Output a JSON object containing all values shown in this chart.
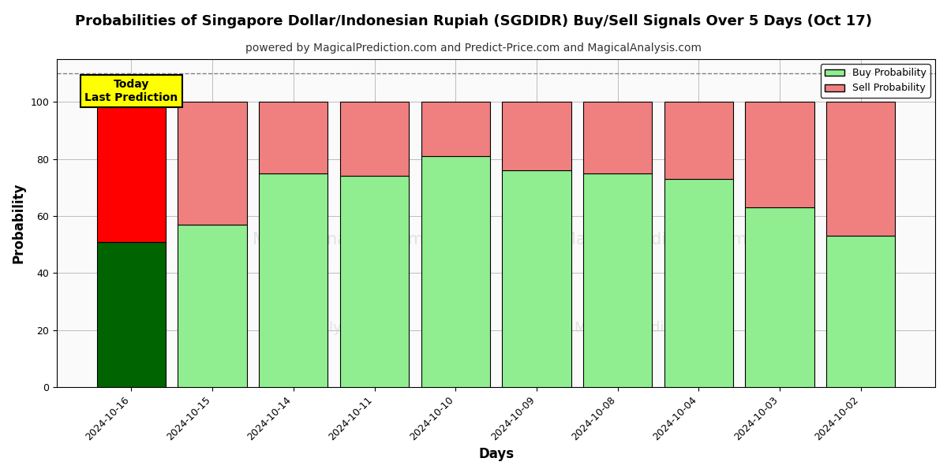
{
  "title": "Probabilities of Singapore Dollar/Indonesian Rupiah (SGDIDR) Buy/Sell Signals Over 5 Days (Oct 17)",
  "subtitle": "powered by MagicalPrediction.com and Predict-Price.com and MagicalAnalysis.com",
  "xlabel": "Days",
  "ylabel": "Probability",
  "dates": [
    "2024-10-16",
    "2024-10-15",
    "2024-10-14",
    "2024-10-11",
    "2024-10-10",
    "2024-10-09",
    "2024-10-08",
    "2024-10-04",
    "2024-10-03",
    "2024-10-02"
  ],
  "buy_probs": [
    51,
    57,
    75,
    74,
    81,
    76,
    75,
    73,
    63,
    53
  ],
  "sell_probs": [
    49,
    43,
    25,
    26,
    19,
    24,
    25,
    27,
    37,
    47
  ],
  "buy_color_today": "#006400",
  "sell_color_today": "#FF0000",
  "buy_color_rest": "#90EE90",
  "sell_color_rest": "#F08080",
  "today_annotation_bg": "#FFFF00",
  "today_annotation_text": "Today\nLast Prediction",
  "ylim": [
    0,
    115
  ],
  "dashed_line_y": 110,
  "legend_buy_label": "Buy Probability",
  "legend_sell_label": "Sell Probability",
  "title_fontsize": 13,
  "subtitle_fontsize": 10,
  "axis_label_fontsize": 12,
  "tick_fontsize": 9,
  "bar_width": 0.85,
  "edgecolor": "#000000",
  "plot_bg_color": "#FAFAFA",
  "fig_bg_color": "#FFFFFF"
}
